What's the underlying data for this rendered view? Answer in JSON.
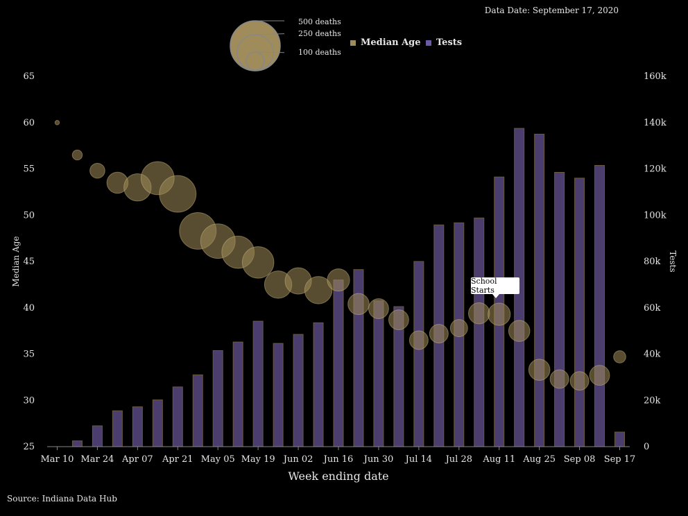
{
  "header": {
    "data_date": "Data Date: September 17, 2020"
  },
  "footer": {
    "source": "Source: Indiana Data Hub"
  },
  "legend": {
    "median_age": "Median Age",
    "tests": "Tests",
    "size_labels": [
      "500 deaths",
      "250 deaths",
      "100 deaths"
    ]
  },
  "annotation": {
    "text": "School Starts"
  },
  "colors": {
    "background": "#000000",
    "bubble": "#a08c5a",
    "bar": "#4b3d6e",
    "bar_edge": "#6a5a3e"
  },
  "chart_data": {
    "type": "bar",
    "xlabel": "Week ending date",
    "ylabel_left": "Median Age",
    "ylabel_right": "Tests",
    "y_left_range": [
      25,
      65
    ],
    "y_right_range": [
      0,
      160000
    ],
    "y_left_ticks": [
      25,
      30,
      35,
      40,
      45,
      50,
      55,
      60,
      65
    ],
    "y_right_ticks": [
      "0",
      "20k",
      "40k",
      "60k",
      "80k",
      "100k",
      "120k",
      "140k",
      "160k"
    ],
    "x_tick_labels": [
      "Mar 10",
      "Mar 24",
      "Apr 07",
      "Apr 21",
      "May 05",
      "May 19",
      "Jun 02",
      "Jun 16",
      "Jun 30",
      "Jul 14",
      "Jul 28",
      "Aug 11",
      "Aug 25",
      "Sep 08",
      "Sep 17"
    ],
    "series": [
      {
        "name": "Tests",
        "type": "bar",
        "axis": "right",
        "values": [
          0,
          2500,
          9000,
          15500,
          17200,
          20200,
          25800,
          31000,
          41500,
          45200,
          54200,
          44600,
          48500,
          53500,
          72000,
          76500,
          63000,
          60500,
          80000,
          95800,
          96700,
          98800,
          116500,
          137500,
          135000,
          118500,
          116000,
          121500,
          6300
        ]
      },
      {
        "name": "Median Age",
        "type": "bubble",
        "axis": "left",
        "values": [
          60,
          56.5,
          54.8,
          53.5,
          53.0,
          54.0,
          52.3,
          48.3,
          47.2,
          46.0,
          44.9,
          42.5,
          42.9,
          41.9,
          43.0,
          40.4,
          39.9,
          38.7,
          36.5,
          37.2,
          37.8,
          39.4,
          39.3,
          37.5,
          33.3,
          32.3,
          32.1,
          32.7,
          34.7
        ],
        "deaths": [
          4,
          20,
          45,
          90,
          150,
          220,
          270,
          270,
          240,
          210,
          200,
          150,
          140,
          150,
          100,
          90,
          80,
          80,
          70,
          70,
          60,
          90,
          100,
          90,
          90,
          70,
          70,
          80,
          30
        ]
      }
    ],
    "annotation_label": "School Starts",
    "annotation_index": 22
  }
}
